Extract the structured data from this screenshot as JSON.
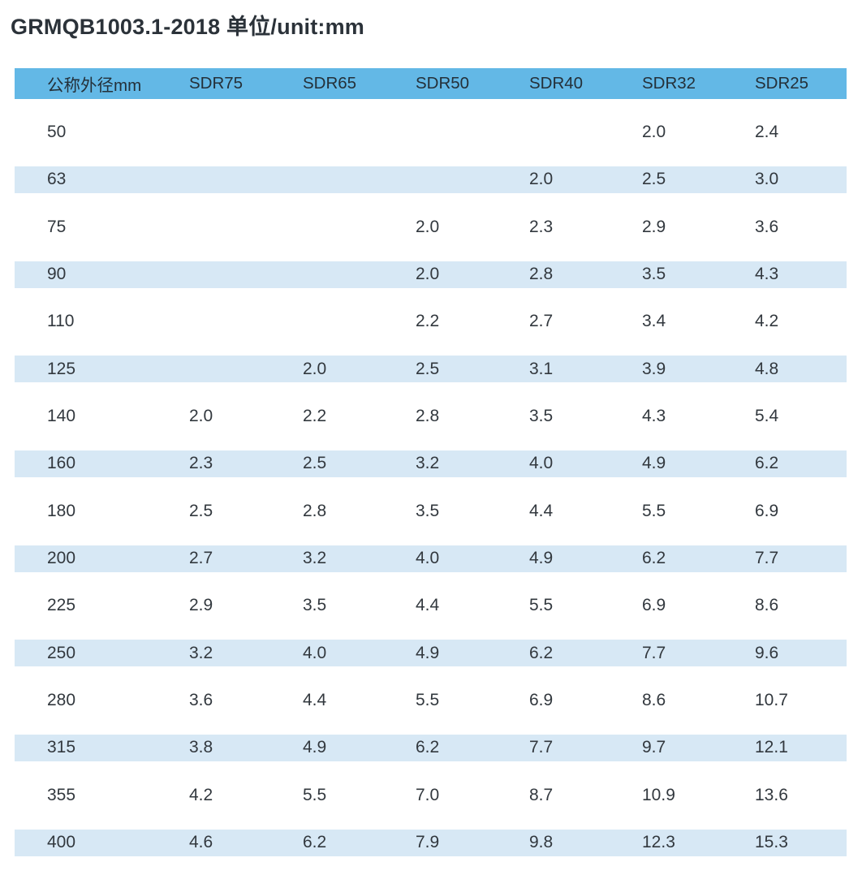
{
  "title": "GRMQB1003.1-2018 单位/unit:mm",
  "colors": {
    "header_bg": "#63b8e6",
    "stripe_bg": "#d7e8f5",
    "title_text": "#2b3239",
    "cell_text": "#32383e"
  },
  "chart_data": {
    "type": "table",
    "title": "GRMQB1003.1-2018 单位/unit:mm",
    "columns": [
      "公称外径mm",
      "SDR75",
      "SDR65",
      "SDR50",
      "SDR40",
      "SDR32",
      "SDR25"
    ],
    "rows": [
      [
        "50",
        "",
        "",
        "",
        "",
        "2.0",
        "2.4"
      ],
      [
        "63",
        "",
        "",
        "",
        "2.0",
        "2.5",
        "3.0"
      ],
      [
        "75",
        "",
        "",
        "2.0",
        "2.3",
        "2.9",
        "3.6"
      ],
      [
        "90",
        "",
        "",
        "2.0",
        "2.8",
        "3.5",
        "4.3"
      ],
      [
        "110",
        "",
        "",
        "2.2",
        "2.7",
        "3.4",
        "4.2"
      ],
      [
        "125",
        "",
        "2.0",
        "2.5",
        "3.1",
        "3.9",
        "4.8"
      ],
      [
        "140",
        "2.0",
        "2.2",
        "2.8",
        "3.5",
        "4.3",
        "5.4"
      ],
      [
        "160",
        "2.3",
        "2.5",
        "3.2",
        "4.0",
        "4.9",
        "6.2"
      ],
      [
        "180",
        "2.5",
        "2.8",
        "3.5",
        "4.4",
        "5.5",
        "6.9"
      ],
      [
        "200",
        "2.7",
        "3.2",
        "4.0",
        "4.9",
        "6.2",
        "7.7"
      ],
      [
        "225",
        "2.9",
        "3.5",
        "4.4",
        "5.5",
        "6.9",
        "8.6"
      ],
      [
        "250",
        "3.2",
        "4.0",
        "4.9",
        "6.2",
        "7.7",
        "9.6"
      ],
      [
        "280",
        "3.6",
        "4.4",
        "5.5",
        "6.9",
        "8.6",
        "10.7"
      ],
      [
        "315",
        "3.8",
        "4.9",
        "6.2",
        "7.7",
        "9.7",
        "12.1"
      ],
      [
        "355",
        "4.2",
        "5.5",
        "7.0",
        "8.7",
        "10.9",
        "13.6"
      ],
      [
        "400",
        "4.6",
        "6.2",
        "7.9",
        "9.8",
        "12.3",
        "15.3"
      ]
    ]
  }
}
